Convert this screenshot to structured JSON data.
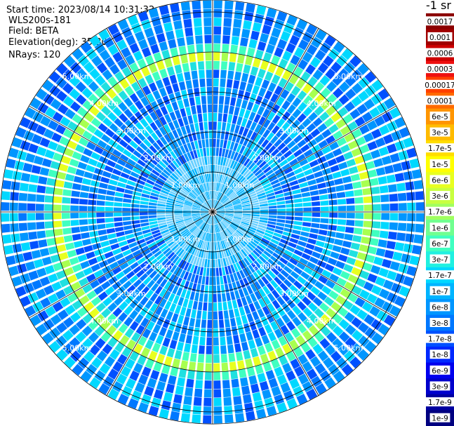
{
  "info": {
    "start_time": "Start time: 2023/08/14 10:31:32",
    "device": "WLS200s-181",
    "field": "Field: BETA",
    "elevation": "Elevation(deg): 35.30",
    "nrays": "NRays: 120"
  },
  "chart_data": {
    "type": "heatmap",
    "projection": "polar (PPI scan)",
    "field": "BETA",
    "nrays": 120,
    "range_rings_km": [
      1,
      2,
      3,
      4,
      5
    ],
    "range_ring_labels": [
      "1.00km",
      "2.00km",
      "3.00km",
      "4.00km",
      "5.00km"
    ],
    "max_range_km": 5.3,
    "spokes_deg": [
      0,
      30,
      60,
      90,
      120,
      150,
      180,
      210,
      240,
      270,
      300,
      330
    ],
    "aerosol_ring_km": 3.9,
    "colorbar": {
      "unit": "-1 sr",
      "labels": [
        "0.0017",
        "0.001",
        "0.0006",
        "0.0003",
        "0.00017",
        "0.0001",
        "6e-5",
        "3e-5",
        "1.7e-5",
        "1e-5",
        "6e-6",
        "3e-6",
        "1.7e-6",
        "1e-6",
        "6e-7",
        "3e-7",
        "1.7e-7",
        "1e-7",
        "6e-8",
        "3e-8",
        "1.7e-8",
        "1e-8",
        "6e-9",
        "3e-9",
        "1.7e-9",
        "1e-9"
      ],
      "colors": [
        "#8b0000",
        "#a00000",
        "#cc0000",
        "#ee1010",
        "#ff4000",
        "#ff6a00",
        "#ff9500",
        "#ffbb00",
        "#ffdd00",
        "#ffff00",
        "#e8ff20",
        "#c8ff40",
        "#a0ff60",
        "#70ff90",
        "#40ffc0",
        "#20f0e0",
        "#00d8ff",
        "#00b4ff",
        "#0096ff",
        "#0078ff",
        "#0050ff",
        "#0028ff",
        "#0000ee",
        "#0000cc",
        "#0000a0",
        "#000080"
      ]
    }
  }
}
